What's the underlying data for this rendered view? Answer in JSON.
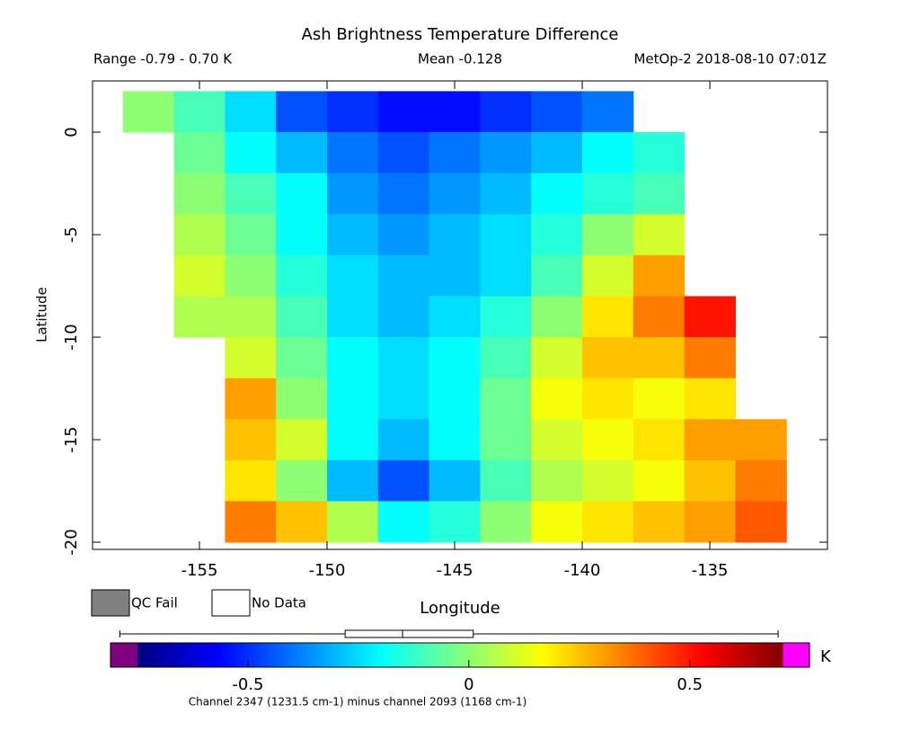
{
  "chart_data": {
    "type": "heatmap",
    "title": "Ash Brightness Temperature Difference",
    "subtitle_left": "Range -0.79 - 0.70 K",
    "subtitle_center": "Mean -0.128",
    "subtitle_right": "MetOp-2 2018-08-10 07:01Z",
    "x_label": "Longitude",
    "y_label": "Latitude",
    "x": [
      -157,
      -155,
      -153,
      -151,
      -149,
      -147,
      -145,
      -143,
      -141,
      -139,
      -137,
      -135,
      -133
    ],
    "y": [
      1,
      -1,
      -3,
      -5,
      -7,
      -9,
      -11,
      -13,
      -15,
      -17,
      -19
    ],
    "values": [
      [
        0.0,
        -0.1,
        -0.25,
        -0.45,
        -0.5,
        -0.55,
        -0.55,
        -0.5,
        -0.45,
        -0.4,
        null,
        null,
        null
      ],
      [
        null,
        -0.05,
        -0.2,
        -0.3,
        -0.4,
        -0.45,
        -0.4,
        -0.35,
        -0.3,
        -0.2,
        -0.15,
        null,
        null
      ],
      [
        null,
        0.0,
        -0.1,
        -0.2,
        -0.35,
        -0.4,
        -0.35,
        -0.3,
        -0.2,
        -0.15,
        -0.1,
        null,
        null
      ],
      [
        null,
        0.05,
        -0.05,
        -0.2,
        -0.3,
        -0.35,
        -0.3,
        -0.25,
        -0.15,
        0.0,
        0.1,
        null,
        null
      ],
      [
        null,
        0.1,
        0.0,
        -0.15,
        -0.25,
        -0.3,
        -0.3,
        -0.25,
        -0.1,
        0.1,
        0.3,
        null,
        null
      ],
      [
        null,
        0.05,
        0.05,
        -0.1,
        -0.25,
        -0.3,
        -0.25,
        -0.15,
        0.0,
        0.2,
        0.35,
        0.5,
        null
      ],
      [
        null,
        null,
        0.1,
        -0.05,
        -0.2,
        -0.25,
        -0.2,
        -0.1,
        0.1,
        0.25,
        0.25,
        0.35,
        null
      ],
      [
        null,
        null,
        0.3,
        0.0,
        -0.2,
        -0.25,
        -0.2,
        -0.05,
        0.15,
        0.2,
        0.15,
        0.2,
        null
      ],
      [
        null,
        null,
        0.25,
        0.1,
        -0.2,
        -0.3,
        -0.2,
        -0.05,
        0.1,
        0.15,
        0.2,
        0.3,
        0.3
      ],
      [
        null,
        null,
        0.2,
        0.0,
        -0.3,
        -0.45,
        -0.3,
        -0.1,
        0.05,
        0.1,
        0.15,
        0.25,
        0.35
      ],
      [
        null,
        null,
        0.35,
        0.25,
        0.05,
        -0.2,
        -0.15,
        0.0,
        0.15,
        0.2,
        0.25,
        0.3,
        0.4
      ]
    ],
    "xlim": [
      -159.19,
      -130.39
    ],
    "ylim": [
      -20.35,
      2.5
    ],
    "xticks": [
      -155,
      -150,
      -145,
      -140,
      -135
    ],
    "yticks": [
      0,
      -5,
      -10,
      -15,
      -20
    ],
    "colorbar": {
      "lim": [
        -0.75,
        0.71
      ],
      "ticks": [
        -0.5,
        0,
        0.5
      ],
      "unit": "K",
      "under_color": "#800080",
      "over_color": "#ff00ff",
      "box": {
        "min": -0.79,
        "q1": -0.28,
        "median": -0.15,
        "q3": 0.01,
        "max": 0.7
      },
      "note": "Channel 2347 (1231.5 cm-1) minus channel 2093 (1168 cm-1)"
    },
    "legend": [
      {
        "name": "QC Fail",
        "color": "#808080"
      },
      {
        "name": "No Data",
        "color": "#ffffff"
      }
    ]
  }
}
